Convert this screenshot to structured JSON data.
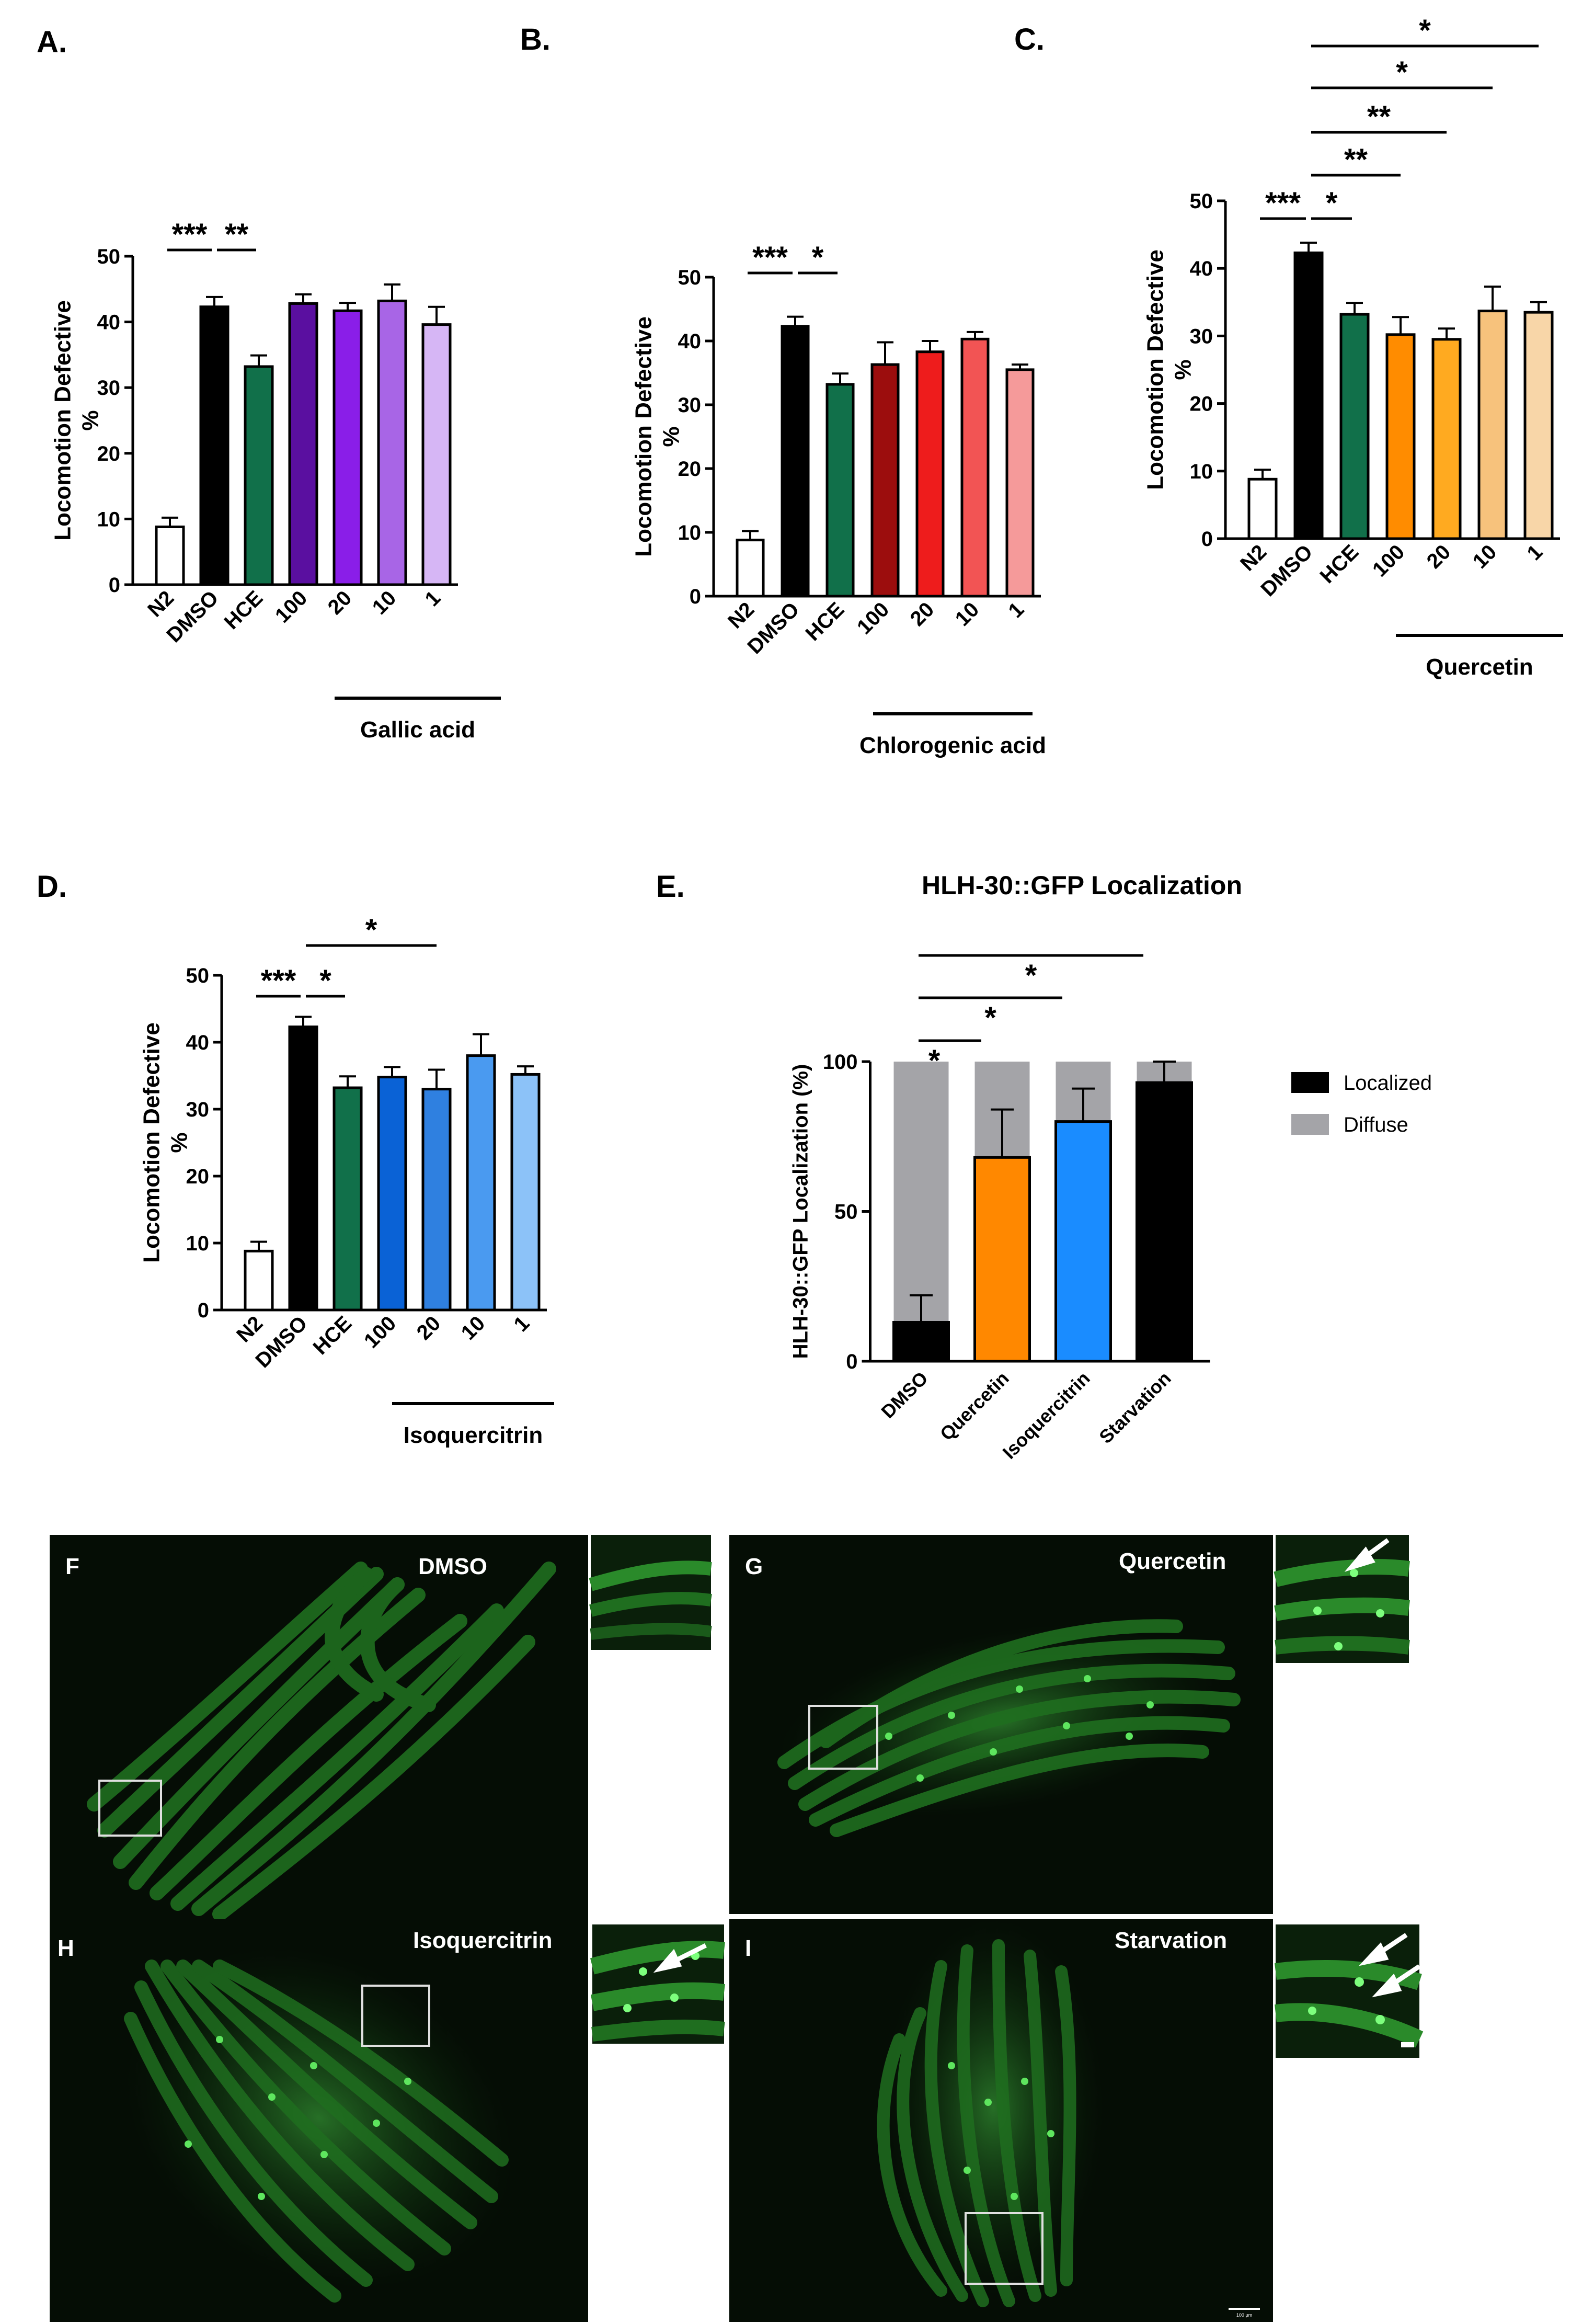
{
  "figure": {
    "panels": [
      {
        "id": "A",
        "label": "A."
      },
      {
        "id": "B",
        "label": "B."
      },
      {
        "id": "C",
        "label": "C."
      },
      {
        "id": "D",
        "label": "D."
      },
      {
        "id": "E",
        "label": "E."
      }
    ],
    "images": [
      {
        "id": "F",
        "label": "F",
        "title": "DMSO"
      },
      {
        "id": "G",
        "label": "G",
        "title": "Quercetin"
      },
      {
        "id": "H",
        "label": "H",
        "title": "Isoquercitrin"
      },
      {
        "id": "I",
        "label": "I",
        "title": "Starvation"
      }
    ],
    "scale_bar_label": "100 μm",
    "colors": {
      "image_bg": "#050d05",
      "worm": "#1f6e1f",
      "worm_bright": "#3fbf3f",
      "puncta": "#6dff6d"
    }
  },
  "chart_data": [
    {
      "panel": "A",
      "type": "bar",
      "ylabel": "Locomotion Defective %",
      "ylim": [
        0,
        50
      ],
      "yticks": [
        0,
        10,
        20,
        30,
        40,
        50
      ],
      "categories": [
        "N2",
        "DMSO",
        "HCE",
        "100",
        "20",
        "10",
        "1"
      ],
      "values": [
        8.8,
        42.3,
        33.2,
        42.8,
        41.7,
        43.2,
        39.6
      ],
      "errors": [
        1.4,
        1.5,
        1.7,
        1.4,
        1.2,
        2.5,
        2.7
      ],
      "colors": [
        "#ffffff",
        "#000000",
        "#11704a",
        "#5a0fa0",
        "#8a1ee8",
        "#a865e6",
        "#d6b6f5"
      ],
      "group_label": "Gallic acid",
      "significance": [
        {
          "text": "***"
        },
        {
          "text": "**"
        }
      ]
    },
    {
      "panel": "B",
      "type": "bar",
      "ylabel": "Locomotion Defective %",
      "ylim": [
        0,
        50
      ],
      "yticks": [
        0,
        10,
        20,
        30,
        40,
        50
      ],
      "categories": [
        "N2",
        "DMSO",
        "HCE",
        "100",
        "20",
        "10",
        "1"
      ],
      "values": [
        8.8,
        42.3,
        33.2,
        36.3,
        38.3,
        40.3,
        35.5
      ],
      "errors": [
        1.4,
        1.5,
        1.7,
        3.5,
        1.7,
        1.1,
        0.8
      ],
      "colors": [
        "#ffffff",
        "#000000",
        "#11704a",
        "#9c0d0d",
        "#ee1c1c",
        "#f25454",
        "#f59a9a"
      ],
      "group_label": "Chlorogenic acid",
      "significance": [
        {
          "text": "***"
        },
        {
          "text": "*"
        }
      ]
    },
    {
      "panel": "C",
      "type": "bar",
      "ylabel": "Locomotion Defective %",
      "ylim": [
        0,
        50
      ],
      "yticks": [
        0,
        10,
        20,
        30,
        40,
        50
      ],
      "categories": [
        "N2",
        "DMSO",
        "HCE",
        "100",
        "20",
        "10",
        "1"
      ],
      "values": [
        8.8,
        42.3,
        33.2,
        30.2,
        29.5,
        33.7,
        33.5
      ],
      "errors": [
        1.4,
        1.5,
        1.7,
        2.6,
        1.6,
        3.6,
        1.5
      ],
      "colors": [
        "#ffffff",
        "#000000",
        "#11704a",
        "#ff8c00",
        "#ffaa20",
        "#f7c27c",
        "#f8d6a8"
      ],
      "group_label": "Quercetin",
      "significance": [
        {
          "text": "***"
        },
        {
          "text": "*"
        },
        {
          "text": "**"
        },
        {
          "text": "**"
        },
        {
          "text": "*"
        },
        {
          "text": "*"
        }
      ]
    },
    {
      "panel": "D",
      "type": "bar",
      "ylabel": "Locomotion Defective %",
      "ylim": [
        0,
        50
      ],
      "yticks": [
        0,
        10,
        20,
        30,
        40,
        50
      ],
      "categories": [
        "N2",
        "DMSO",
        "HCE",
        "100",
        "20",
        "10",
        "1"
      ],
      "values": [
        8.8,
        42.3,
        33.2,
        34.8,
        33.0,
        38.0,
        35.2
      ],
      "errors": [
        1.4,
        1.5,
        1.7,
        1.5,
        2.9,
        3.2,
        1.2
      ],
      "colors": [
        "#ffffff",
        "#000000",
        "#11704a",
        "#0a62d6",
        "#2f80e0",
        "#4a9af0",
        "#8cc2f8"
      ],
      "group_label": "Isoquercitrin",
      "significance": [
        {
          "text": "***"
        },
        {
          "text": "*"
        },
        {
          "text": "*"
        }
      ]
    },
    {
      "panel": "E",
      "type": "bar",
      "title": "HLH-30::GFP Localization",
      "ylabel": "HLH-30::GFP Localization (%)",
      "ylim": [
        0,
        100
      ],
      "yticks": [
        0,
        50,
        100
      ],
      "categories": [
        "DMSO",
        "Quercetin",
        "Isoquercitrin",
        "Starvation"
      ],
      "series": [
        {
          "name": "Localized",
          "values": [
            13,
            68,
            80,
            93
          ],
          "errors": [
            9,
            16,
            11,
            7
          ]
        },
        {
          "name": "Diffuse",
          "values": [
            87,
            32,
            20,
            7
          ]
        }
      ],
      "localized_colors": [
        "#000000",
        "#ff8800",
        "#1a8cff",
        "#000000"
      ],
      "diffuse_color": "#a4a4a8",
      "legend": [
        {
          "name": "Localized",
          "color": "#000000"
        },
        {
          "name": "Diffuse",
          "color": "#a4a4a8"
        }
      ],
      "significance": [
        {
          "text": "*"
        },
        {
          "text": "*"
        },
        {
          "text": "*"
        }
      ]
    }
  ]
}
